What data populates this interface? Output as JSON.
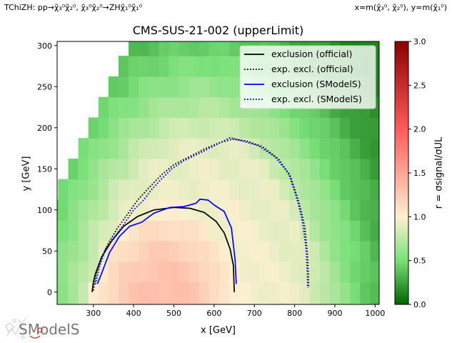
{
  "header": {
    "model": "TChiZH: pp→χ̃₃⁰χ̃₂⁰, χ̃₃⁰χ̃₂⁰→ZHχ̃₁⁰χ̃₁⁰",
    "axes_def": "x=m(χ̃₃⁰, χ̃₂⁰), y=m(χ̃₁⁰)"
  },
  "logo": {
    "text": "SModelS"
  },
  "chart_data": {
    "type": "heatmap",
    "title": "CMS-SUS-21-002 (upperLimit)",
    "xlabel": "x [GeV]",
    "ylabel": "y [GeV]",
    "xlim": [
      210,
      1010
    ],
    "ylim": [
      -15,
      305
    ],
    "xticks": [
      300,
      400,
      500,
      600,
      700,
      800,
      900,
      1000
    ],
    "yticks": [
      0,
      50,
      100,
      150,
      200,
      250,
      300
    ],
    "cell_size": 25,
    "colorbar": {
      "label": "r = σsignal/σUL",
      "range": [
        0.0,
        3.0
      ],
      "ticks": [
        "0.0",
        "0.5",
        "1.0",
        "1.5",
        "2.0",
        "2.5",
        "3.0"
      ]
    },
    "legend": {
      "position": "upper-right",
      "entries": [
        {
          "label": "exclusion (official)",
          "color": "#000000",
          "dashed": false
        },
        {
          "label": "exp. excl. (official)",
          "color": "#000000",
          "dashed": true
        },
        {
          "label": "exclusion (SModelS)",
          "color": "#0000ff",
          "dashed": false
        },
        {
          "label": "exp. excl. (SModelS)",
          "color": "#0000ff",
          "dashed": true
        }
      ]
    },
    "series": [
      {
        "name": "exclusion (official)",
        "color": "#000000",
        "dashed": false,
        "points": [
          [
            297,
            0
          ],
          [
            300,
            12
          ],
          [
            305,
            22
          ],
          [
            320,
            42
          ],
          [
            345,
            62
          ],
          [
            375,
            80
          ],
          [
            410,
            92
          ],
          [
            450,
            100
          ],
          [
            500,
            103
          ],
          [
            540,
            102
          ],
          [
            575,
            97
          ],
          [
            605,
            86
          ],
          [
            625,
            72
          ],
          [
            640,
            52
          ],
          [
            648,
            32
          ],
          [
            650,
            0
          ]
        ]
      },
      {
        "name": "exp. excl. (official)",
        "color": "#000000",
        "dashed": true,
        "points": [
          [
            300,
            2
          ],
          [
            307,
            22
          ],
          [
            320,
            42
          ],
          [
            338,
            60
          ],
          [
            360,
            78
          ],
          [
            385,
            95
          ],
          [
            410,
            112
          ],
          [
            440,
            128
          ],
          [
            470,
            143
          ],
          [
            500,
            155
          ],
          [
            540,
            165
          ],
          [
            580,
            175
          ],
          [
            615,
            182
          ],
          [
            645,
            186
          ],
          [
            680,
            184
          ],
          [
            720,
            177
          ],
          [
            760,
            162
          ],
          [
            790,
            140
          ],
          [
            810,
            110
          ],
          [
            825,
            80
          ],
          [
            832,
            45
          ],
          [
            835,
            5
          ]
        ]
      },
      {
        "name": "exclusion (SModelS)",
        "color": "#0000ff",
        "dashed": false,
        "points": [
          [
            310,
            10
          ],
          [
            320,
            22
          ],
          [
            340,
            48
          ],
          [
            365,
            68
          ],
          [
            390,
            80
          ],
          [
            420,
            85
          ],
          [
            450,
            96
          ],
          [
            490,
            103
          ],
          [
            525,
            104
          ],
          [
            555,
            108
          ],
          [
            565,
            113
          ],
          [
            585,
            112
          ],
          [
            600,
            106
          ],
          [
            625,
            98
          ],
          [
            643,
            78
          ],
          [
            652,
            40
          ],
          [
            655,
            10
          ]
        ]
      },
      {
        "name": "exp. excl. (SModelS)",
        "color": "#0000ff",
        "dashed": true,
        "points": [
          [
            305,
            10
          ],
          [
            315,
            30
          ],
          [
            330,
            52
          ],
          [
            350,
            65
          ],
          [
            375,
            82
          ],
          [
            400,
            100
          ],
          [
            425,
            112
          ],
          [
            445,
            125
          ],
          [
            470,
            138
          ],
          [
            495,
            150
          ],
          [
            525,
            160
          ],
          [
            560,
            168
          ],
          [
            600,
            178
          ],
          [
            640,
            188
          ],
          [
            670,
            184
          ],
          [
            710,
            178
          ],
          [
            750,
            165
          ],
          [
            785,
            145
          ],
          [
            805,
            115
          ],
          [
            818,
            90
          ],
          [
            828,
            55
          ],
          [
            832,
            20
          ],
          [
            832,
            5
          ]
        ]
      }
    ],
    "regions": {
      "official_observed_excl": {
        "center": [
          473,
          -21
        ],
        "radii": [
          177,
          124
        ]
      },
      "official_expected_excl": {
        "center": [
          573,
          -32
        ],
        "radii": [
          263,
          218
        ]
      },
      "upper_left_boundary_offset": 100
    }
  }
}
